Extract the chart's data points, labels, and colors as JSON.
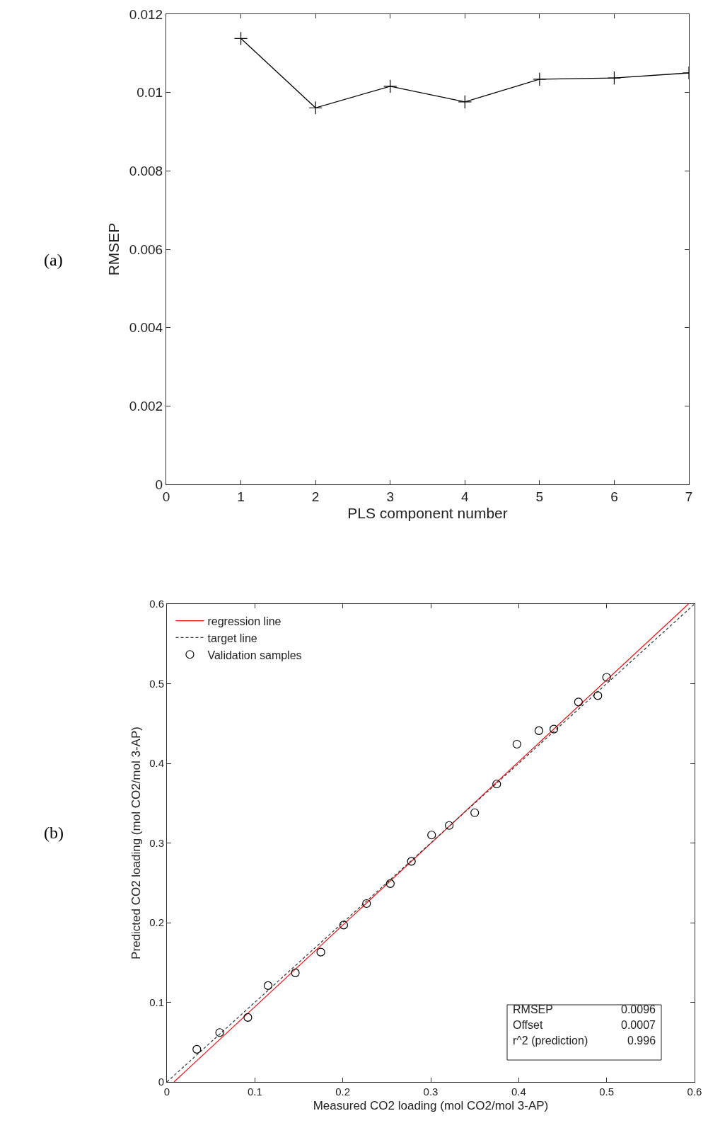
{
  "chart_data": [
    {
      "type": "line",
      "xlabel": "PLS component number",
      "ylabel": "RMSEP",
      "annotations": [
        "(a)"
      ],
      "x": [
        1,
        2,
        3,
        4,
        5,
        6,
        7
      ],
      "series": [
        {
          "color": "#000000",
          "marker": "cross",
          "line_style": "solid",
          "values": [
            0.01138,
            0.00961,
            0.01016,
            0.00976,
            0.01034,
            0.01037,
            0.0105
          ]
        }
      ],
      "xlim": [
        0,
        7
      ],
      "xticks": [
        0,
        1,
        2,
        3,
        4,
        5,
        6,
        7
      ],
      "ylim": [
        0,
        0.012
      ],
      "yticks": [
        0,
        0.002,
        0.004,
        0.006,
        0.008,
        0.01,
        0.012
      ]
    },
    {
      "type": "scatter",
      "xlabel": "Measured CO2 loading (mol CO2/mol 3-AP)",
      "ylabel": "Predicted CO2 loading (mol CO2/mol 3-AP)",
      "annotations": [
        "(b)",
        "RMSEP",
        "0.0096",
        "Offset",
        "0.0007",
        "r^2 (prediction)",
        "0.996"
      ],
      "series": [
        {
          "name": "regression line",
          "type": "line",
          "color": "#ff0000",
          "marker": "none",
          "line_style": "solid",
          "x": [
            0.008,
            0.593
          ],
          "values": [
            0,
            0.6
          ]
        },
        {
          "name": "target line",
          "type": "line",
          "color": "#333333",
          "marker": "none",
          "line_style": "dashed",
          "x": [
            0,
            0.6
          ],
          "values": [
            0,
            0.6
          ]
        },
        {
          "name": "Validation samples",
          "type": "scatter",
          "color": "#000000",
          "marker": "circle",
          "x": [
            0.034,
            0.06,
            0.092,
            0.115,
            0.146,
            0.175,
            0.201,
            0.227,
            0.254,
            0.278,
            0.301,
            0.321,
            0.35,
            0.375,
            0.398,
            0.423,
            0.44,
            0.468,
            0.49,
            0.5
          ],
          "values": [
            0.041,
            0.062,
            0.081,
            0.121,
            0.137,
            0.163,
            0.197,
            0.224,
            0.249,
            0.277,
            0.31,
            0.322,
            0.338,
            0.374,
            0.424,
            0.441,
            0.443,
            0.477,
            0.485,
            0.508
          ]
        }
      ],
      "xlim": [
        0,
        0.6
      ],
      "xticks": [
        0,
        0.1,
        0.2,
        0.3,
        0.4,
        0.5,
        0.6
      ],
      "ylim": [
        0,
        0.6
      ],
      "yticks": [
        0,
        0.1,
        0.2,
        0.3,
        0.4,
        0.5,
        0.6
      ],
      "legend": "top left"
    }
  ]
}
